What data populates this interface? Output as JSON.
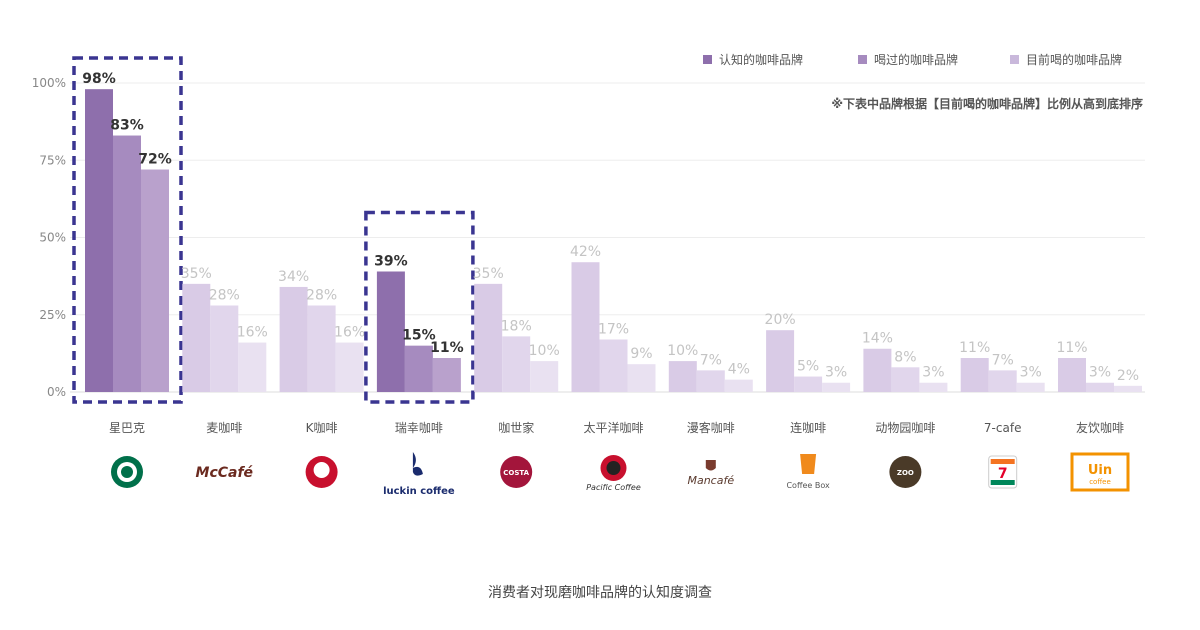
{
  "chart_data": {
    "type": "bar",
    "note": "※下表中品牌根据【目前喝的咖啡品牌】比例从高到底排序",
    "caption": "消费者对现磨咖啡品牌的认知度调查",
    "ylim": [
      0,
      100
    ],
    "yticks": [
      "0%",
      "25%",
      "50%",
      "75%",
      "100%"
    ],
    "ytick_values": [
      0,
      25,
      50,
      75,
      100
    ],
    "grid": true,
    "legend_position": "top-right",
    "categories": [
      "星巴克",
      "麦咖啡",
      "K咖啡",
      "瑞幸咖啡",
      "咖世家",
      "太平洋咖啡",
      "漫客咖啡",
      "连咖啡",
      "动物园咖啡",
      "7-cafe",
      "友饮咖啡"
    ],
    "highlighted": [
      "星巴克",
      "瑞幸咖啡"
    ],
    "series": [
      {
        "name": "认知的咖啡品牌",
        "values": [
          98,
          35,
          34,
          39,
          35,
          42,
          10,
          20,
          14,
          11,
          11
        ]
      },
      {
        "name": "喝过的咖啡品牌",
        "values": [
          83,
          28,
          28,
          15,
          18,
          17,
          7,
          5,
          8,
          7,
          3
        ]
      },
      {
        "name": "目前喝的咖啡品牌",
        "values": [
          72,
          16,
          16,
          11,
          10,
          9,
          4,
          3,
          3,
          3,
          2
        ]
      }
    ],
    "colors": {
      "highlight": [
        "#8e6fac",
        "#a68bbf",
        "#b9a1cc"
      ],
      "normal": [
        "#d9cbe6",
        "#e1d6ec",
        "#e9e1f1"
      ],
      "legend": [
        "#8e6fac",
        "#a68bbf",
        "#c9b8db"
      ],
      "dashed_box": "#3a3591",
      "highlight_label": "#333333",
      "normal_label": "#c4c4c4",
      "grid": "#ededed"
    },
    "logos": [
      {
        "name": "starbucks-logo",
        "text": ""
      },
      {
        "name": "mccafe-logo",
        "text": "McCafé"
      },
      {
        "name": "kfc-logo",
        "text": ""
      },
      {
        "name": "luckin-logo",
        "text": "luckin coffee"
      },
      {
        "name": "costa-logo",
        "text": "COSTA COFFEE"
      },
      {
        "name": "pacific-coffee-logo",
        "text": "Pacific Coffee"
      },
      {
        "name": "mancafe-logo",
        "text": "Mancafé"
      },
      {
        "name": "coffeebox-logo",
        "text": "Coffee Box"
      },
      {
        "name": "zoo-coffee-logo",
        "text": "ZOO COFFEE"
      },
      {
        "name": "seven-eleven-logo",
        "text": "ELEVEn"
      },
      {
        "name": "uin-coffee-logo",
        "text": "Uin coffee"
      }
    ]
  }
}
